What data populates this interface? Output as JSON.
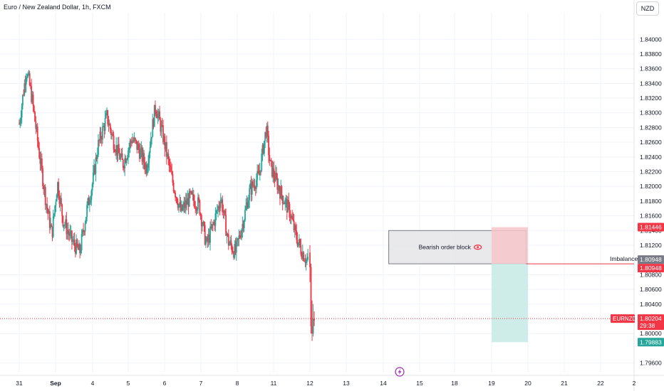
{
  "header": {
    "title": "Euro / New Zealand Dollar, 1h, FXCM",
    "currency_button": "NZD"
  },
  "colors": {
    "up": "#26a69a",
    "down": "#f23645",
    "grid": "#f0f3fa",
    "axis_text": "#131722",
    "order_block_fill": "#e1e2e6",
    "risk_fill": "#f6c6c9",
    "reward_fill": "#c9ebe6"
  },
  "chart_data": {
    "type": "candlestick",
    "symbol": "EURNZD",
    "ylim": [
      1.7948,
      1.8436
    ],
    "y_ticks": [
      "1.84000",
      "1.83800",
      "1.83600",
      "1.83400",
      "1.83200",
      "1.83000",
      "1.82800",
      "1.82600",
      "1.82400",
      "1.82200",
      "1.82000",
      "1.81800",
      "1.81600",
      "1.81400",
      "1.81200",
      "1.80800",
      "1.80600",
      "1.80400",
      "1.80000",
      "1.79600"
    ],
    "y_tick_values": [
      1.84,
      1.838,
      1.836,
      1.834,
      1.832,
      1.83,
      1.828,
      1.826,
      1.824,
      1.822,
      1.82,
      1.818,
      1.816,
      1.814,
      1.812,
      1.808,
      1.806,
      1.804,
      1.8,
      1.796
    ],
    "x_ticks": [
      {
        "label": "31",
        "t": 0
      },
      {
        "label": "Sep",
        "t": 1
      },
      {
        "label": "4",
        "t": 2
      },
      {
        "label": "5",
        "t": 3
      },
      {
        "label": "6",
        "t": 4
      },
      {
        "label": "7",
        "t": 5
      },
      {
        "label": "8",
        "t": 6
      },
      {
        "label": "11",
        "t": 7
      },
      {
        "label": "12",
        "t": 8
      },
      {
        "label": "13",
        "t": 9
      },
      {
        "label": "14",
        "t": 10
      },
      {
        "label": "15",
        "t": 11
      },
      {
        "label": "18",
        "t": 12
      },
      {
        "label": "19",
        "t": 13
      },
      {
        "label": "20",
        "t": 14
      },
      {
        "label": "21",
        "t": 15
      },
      {
        "label": "22",
        "t": 16
      },
      {
        "label": "2",
        "t": 17
      }
    ],
    "price_path": [
      [
        0,
        1.8285
      ],
      [
        0.2,
        1.836
      ],
      [
        0.35,
        1.832
      ],
      [
        0.55,
        1.8245
      ],
      [
        0.75,
        1.8175
      ],
      [
        0.9,
        1.8135
      ],
      [
        1.05,
        1.8205
      ],
      [
        1.2,
        1.8155
      ],
      [
        1.45,
        1.8125
      ],
      [
        1.65,
        1.811
      ],
      [
        1.85,
        1.817
      ],
      [
        2.0,
        1.8205
      ],
      [
        2.15,
        1.8255
      ],
      [
        2.4,
        1.8295
      ],
      [
        2.6,
        1.826
      ],
      [
        2.85,
        1.823
      ],
      [
        3.1,
        1.8265
      ],
      [
        3.3,
        1.825
      ],
      [
        3.5,
        1.8225
      ],
      [
        3.75,
        1.831
      ],
      [
        3.95,
        1.827
      ],
      [
        4.2,
        1.821
      ],
      [
        4.45,
        1.8165
      ],
      [
        4.7,
        1.8185
      ],
      [
        4.95,
        1.8175
      ],
      [
        5.15,
        1.812
      ],
      [
        5.35,
        1.815
      ],
      [
        5.55,
        1.8185
      ],
      [
        5.75,
        1.8125
      ],
      [
        5.95,
        1.811
      ],
      [
        6.15,
        1.815
      ],
      [
        6.35,
        1.8195
      ],
      [
        6.6,
        1.8215
      ],
      [
        6.8,
        1.828
      ],
      [
        6.9,
        1.823
      ],
      [
        7.05,
        1.821
      ],
      [
        7.25,
        1.8185
      ],
      [
        7.45,
        1.8165
      ],
      [
        7.6,
        1.8135
      ],
      [
        7.75,
        1.8115
      ],
      [
        7.9,
        1.81
      ],
      [
        7.98,
        1.8095
      ],
      [
        8.05,
        1.8122
      ]
    ],
    "last_price": "1.80204",
    "countdown": "29:38",
    "price_labels": [
      {
        "text": "1.81446",
        "value": 1.81446,
        "kind": "down"
      },
      {
        "text": "1.80948",
        "value": 1.80948,
        "kind": "gray"
      },
      {
        "text": "1.80948",
        "value": 1.80948,
        "kind": "down"
      },
      {
        "text": "1.79883",
        "value": 1.79883,
        "kind": "up"
      }
    ],
    "annotations": {
      "order_block": {
        "label": "Bearish order block",
        "top": 1.814,
        "bottom": 1.80948,
        "t_start": 10.15,
        "t_end": 13.95
      },
      "imbalance": {
        "label": "Imbalance",
        "value": 1.80948
      },
      "position": {
        "entry": 1.80948,
        "stop": 1.81446,
        "target": 1.79883,
        "t_start": 13.0,
        "t_end": 14.0
      }
    },
    "flag_icon": "lightning-icon"
  }
}
